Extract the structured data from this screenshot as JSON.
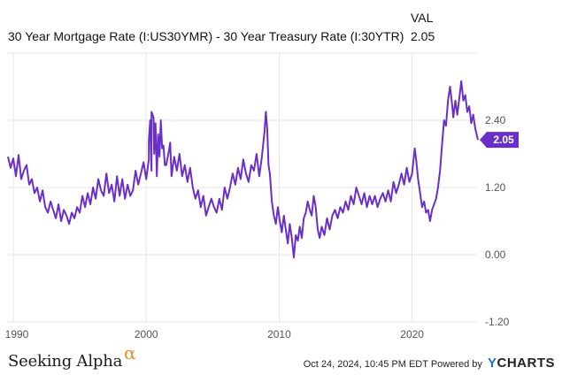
{
  "legend": {
    "header": "VAL",
    "series_name": "30 Year Mortgage Rate (I:US30YMR) - 30 Year Treasury Rate (I:30YTR)",
    "value": "2.05"
  },
  "footer": {
    "logo_text": "Seeking Alpha",
    "logo_mark": "α",
    "timestamp": "Oct 24, 2024, 10:45 PM EDT Powered by",
    "brand_y": "Y",
    "brand_rest": "CHARTS"
  },
  "colors": {
    "series": "#6a2fc9",
    "grid": "#e6e6e6",
    "axis_text": "#555555"
  },
  "chart_data": {
    "type": "line",
    "title": "",
    "xlabel": "",
    "ylabel": "",
    "x_ticks": [
      "1990",
      "2000",
      "2010",
      "2020"
    ],
    "y_ticks": [
      "2.40",
      "1.20",
      "0.00",
      "-1.20"
    ],
    "ylim": [
      -1.2,
      3.6
    ],
    "xlim": [
      1989.6,
      2024.95
    ],
    "grid": true,
    "last_value_label": "2.05",
    "series": [
      {
        "values": [
          [
            1989.6,
            1.75
          ],
          [
            1989.8,
            1.55
          ],
          [
            1990.0,
            1.72
          ],
          [
            1990.2,
            1.4
          ],
          [
            1990.4,
            1.78
          ],
          [
            1990.6,
            1.35
          ],
          [
            1990.8,
            1.5
          ],
          [
            1991.0,
            1.6
          ],
          [
            1991.2,
            1.25
          ],
          [
            1991.4,
            1.35
          ],
          [
            1991.6,
            1.1
          ],
          [
            1991.8,
            1.2
          ],
          [
            1992.0,
            0.95
          ],
          [
            1992.2,
            1.15
          ],
          [
            1992.4,
            0.85
          ],
          [
            1992.6,
            0.75
          ],
          [
            1992.8,
            0.95
          ],
          [
            1993.0,
            0.8
          ],
          [
            1993.2,
            0.65
          ],
          [
            1993.4,
            0.9
          ],
          [
            1993.6,
            0.6
          ],
          [
            1993.8,
            0.8
          ],
          [
            1994.0,
            0.7
          ],
          [
            1994.2,
            0.55
          ],
          [
            1994.4,
            0.75
          ],
          [
            1994.6,
            0.65
          ],
          [
            1994.8,
            0.85
          ],
          [
            1995.0,
            0.75
          ],
          [
            1995.2,
            1.05
          ],
          [
            1995.4,
            0.85
          ],
          [
            1995.6,
            1.1
          ],
          [
            1995.8,
            0.9
          ],
          [
            1996.0,
            1.2
          ],
          [
            1996.2,
            1.0
          ],
          [
            1996.4,
            1.35
          ],
          [
            1996.6,
            1.15
          ],
          [
            1996.8,
            1.05
          ],
          [
            1997.0,
            1.45
          ],
          [
            1997.2,
            1.1
          ],
          [
            1997.4,
            1.25
          ],
          [
            1997.6,
            0.95
          ],
          [
            1997.8,
            1.4
          ],
          [
            1998.0,
            1.05
          ],
          [
            1998.2,
            1.35
          ],
          [
            1998.4,
            1.0
          ],
          [
            1998.6,
            1.25
          ],
          [
            1998.8,
            1.05
          ],
          [
            1999.0,
            1.15
          ],
          [
            1999.2,
            1.5
          ],
          [
            1999.4,
            1.25
          ],
          [
            1999.6,
            1.45
          ],
          [
            1999.8,
            1.65
          ],
          [
            2000.0,
            1.35
          ],
          [
            2000.2,
            1.7
          ],
          [
            2000.4,
            1.5
          ],
          [
            2000.6,
            1.8
          ],
          [
            2000.8,
            1.4
          ],
          [
            2001.0,
            1.75
          ],
          [
            2001.2,
            1.9
          ],
          [
            2001.4,
            1.6
          ],
          [
            2001.8,
            2.0
          ],
          [
            2000.2,
            2.05
          ],
          [
            2000.3,
            2.4
          ],
          [
            2000.4,
            2.55
          ],
          [
            2000.55,
            2.45
          ],
          [
            2000.7,
            2.35
          ],
          [
            2000.9,
            2.15
          ],
          [
            2001.1,
            2.4
          ],
          [
            2001.3,
            1.95
          ],
          [
            2001.5,
            1.6
          ],
          [
            2001.7,
            1.85
          ],
          [
            2001.9,
            1.4
          ],
          [
            2002.1,
            1.75
          ],
          [
            2002.3,
            1.5
          ],
          [
            2002.5,
            1.8
          ],
          [
            2002.7,
            1.4
          ],
          [
            2002.9,
            1.6
          ],
          [
            2003.1,
            1.3
          ],
          [
            2003.3,
            1.55
          ],
          [
            2003.5,
            1.2
          ],
          [
            2003.7,
            1.0
          ],
          [
            2003.9,
            1.15
          ],
          [
            2004.1,
            0.85
          ],
          [
            2004.3,
            1.05
          ],
          [
            2004.5,
            0.7
          ],
          [
            2004.7,
            0.85
          ],
          [
            2004.9,
            1.0
          ],
          [
            2005.1,
            0.85
          ],
          [
            2005.3,
            0.75
          ],
          [
            2005.5,
            1.0
          ],
          [
            2005.7,
            0.8
          ],
          [
            2005.9,
            1.2
          ],
          [
            2006.1,
            1.0
          ],
          [
            2006.3,
            1.2
          ],
          [
            2006.5,
            1.45
          ],
          [
            2006.7,
            1.25
          ],
          [
            2006.9,
            1.55
          ],
          [
            2007.1,
            1.35
          ],
          [
            2007.3,
            1.7
          ],
          [
            2007.5,
            1.45
          ],
          [
            2007.7,
            1.3
          ],
          [
            2007.9,
            1.6
          ],
          [
            2008.1,
            1.5
          ],
          [
            2008.3,
            1.8
          ],
          [
            2008.5,
            1.4
          ],
          [
            2008.7,
            1.75
          ],
          [
            2008.9,
            2.2
          ],
          [
            2009.0,
            2.55
          ],
          [
            2009.1,
            2.25
          ],
          [
            2009.2,
            1.6
          ],
          [
            2009.3,
            1.45
          ],
          [
            2009.45,
            0.95
          ],
          [
            2009.6,
            0.7
          ],
          [
            2009.75,
            0.55
          ],
          [
            2009.9,
            0.85
          ],
          [
            2010.05,
            0.6
          ],
          [
            2010.2,
            0.4
          ],
          [
            2010.35,
            0.7
          ],
          [
            2010.5,
            0.45
          ],
          [
            2010.65,
            0.2
          ],
          [
            2010.8,
            0.55
          ],
          [
            2010.95,
            0.3
          ],
          [
            2011.1,
            -0.05
          ],
          [
            2011.25,
            0.35
          ],
          [
            2011.4,
            0.25
          ],
          [
            2011.55,
            0.5
          ],
          [
            2011.7,
            0.3
          ],
          [
            2011.85,
            0.65
          ],
          [
            2012.0,
            0.75
          ],
          [
            2012.15,
            0.95
          ],
          [
            2012.3,
            0.8
          ],
          [
            2012.45,
            0.7
          ],
          [
            2012.6,
            1.05
          ],
          [
            2012.75,
            0.85
          ],
          [
            2012.9,
            0.45
          ],
          [
            2013.05,
            0.3
          ],
          [
            2013.2,
            0.5
          ],
          [
            2013.4,
            0.35
          ],
          [
            2013.6,
            0.65
          ],
          [
            2013.8,
            0.45
          ],
          [
            2014.0,
            0.7
          ],
          [
            2014.2,
            0.8
          ],
          [
            2014.4,
            0.65
          ],
          [
            2014.6,
            0.85
          ],
          [
            2014.8,
            0.75
          ],
          [
            2015.0,
            0.95
          ],
          [
            2015.2,
            0.8
          ],
          [
            2015.4,
            1.05
          ],
          [
            2015.6,
            0.9
          ],
          [
            2015.8,
            1.2
          ],
          [
            2016.0,
            1.05
          ],
          [
            2016.2,
            0.9
          ],
          [
            2016.4,
            1.1
          ],
          [
            2016.6,
            0.85
          ],
          [
            2016.8,
            1.05
          ],
          [
            2017.0,
            0.9
          ],
          [
            2017.2,
            1.05
          ],
          [
            2017.4,
            0.85
          ],
          [
            2017.6,
            1.0
          ],
          [
            2017.8,
            1.1
          ],
          [
            2018.0,
            0.95
          ],
          [
            2018.2,
            1.15
          ],
          [
            2018.4,
            0.95
          ],
          [
            2018.6,
            1.3
          ],
          [
            2018.8,
            1.1
          ],
          [
            2019.0,
            1.25
          ],
          [
            2019.2,
            1.45
          ],
          [
            2019.4,
            1.25
          ],
          [
            2019.6,
            1.55
          ],
          [
            2019.8,
            1.3
          ],
          [
            2020.0,
            1.45
          ],
          [
            2020.2,
            1.9
          ],
          [
            2020.3,
            1.7
          ],
          [
            2020.45,
            1.35
          ],
          [
            2020.6,
            1.1
          ],
          [
            2020.75,
            0.85
          ],
          [
            2020.9,
            0.95
          ],
          [
            2021.05,
            0.75
          ],
          [
            2021.2,
            0.8
          ],
          [
            2021.35,
            0.6
          ],
          [
            2021.5,
            0.8
          ],
          [
            2021.65,
            0.9
          ],
          [
            2021.8,
            1.0
          ],
          [
            2021.95,
            1.2
          ],
          [
            2022.1,
            1.5
          ],
          [
            2022.25,
            1.95
          ],
          [
            2022.4,
            2.4
          ],
          [
            2022.55,
            2.3
          ],
          [
            2022.7,
            2.75
          ],
          [
            2022.85,
            3.0
          ],
          [
            2023.0,
            2.7
          ],
          [
            2023.1,
            2.45
          ],
          [
            2023.25,
            2.75
          ],
          [
            2023.4,
            2.5
          ],
          [
            2023.55,
            2.8
          ],
          [
            2023.7,
            3.1
          ],
          [
            2023.85,
            2.75
          ],
          [
            2024.0,
            2.85
          ],
          [
            2024.15,
            2.55
          ],
          [
            2024.3,
            2.65
          ],
          [
            2024.45,
            2.35
          ],
          [
            2024.6,
            2.5
          ],
          [
            2024.75,
            2.25
          ],
          [
            2024.95,
            2.05
          ]
        ]
      }
    ]
  }
}
